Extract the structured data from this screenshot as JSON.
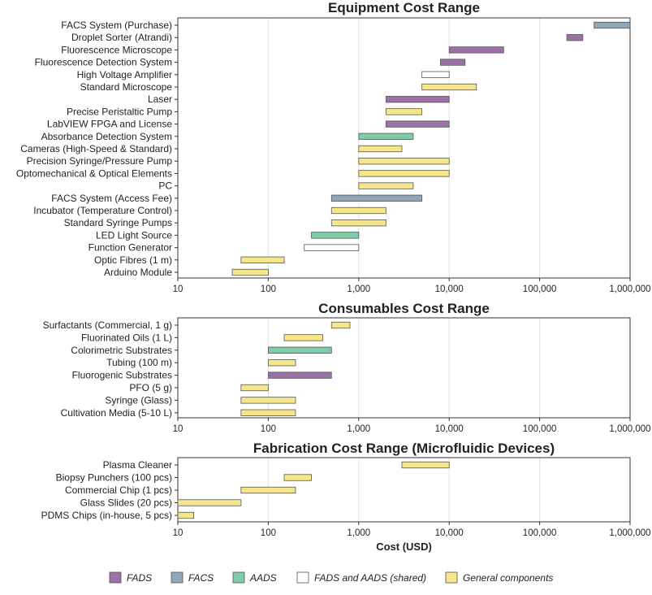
{
  "chart_data": [
    {
      "type": "bar",
      "orientation": "horizontal-range",
      "title": "Equipment Cost Range",
      "xscale": "log",
      "xlim": [
        10,
        1000000
      ],
      "xticks": [
        10,
        100,
        1000,
        10000,
        100000,
        1000000
      ],
      "xtick_labels": [
        "10",
        "100",
        "1,000",
        "10,000",
        "100,000",
        "1,000,000"
      ],
      "xlabel": "",
      "grid": "vertical",
      "items": [
        {
          "label": "FACS System (Purchase)",
          "min": 400000,
          "max": 1000000,
          "category": "FACS"
        },
        {
          "label": "Droplet Sorter (Atrandi)",
          "min": 200000,
          "max": 300000,
          "category": "FADS"
        },
        {
          "label": "Fluorescence Microscope",
          "min": 10000,
          "max": 40000,
          "category": "FADS"
        },
        {
          "label": "Fluorescence Detection System",
          "min": 8000,
          "max": 15000,
          "category": "FADS"
        },
        {
          "label": "High Voltage Amplifier",
          "min": 5000,
          "max": 10000,
          "category": "FADS and AADS (shared)"
        },
        {
          "label": "Standard Microscope",
          "min": 5000,
          "max": 20000,
          "category": "General components"
        },
        {
          "label": "Laser",
          "min": 2000,
          "max": 10000,
          "category": "FADS"
        },
        {
          "label": "Precise Peristaltic Pump",
          "min": 2000,
          "max": 5000,
          "category": "General components"
        },
        {
          "label": "LabVIEW FPGA and License",
          "min": 2000,
          "max": 10000,
          "category": "FADS"
        },
        {
          "label": "Absorbance Detection System",
          "min": 1000,
          "max": 4000,
          "category": "AADS"
        },
        {
          "label": "Cameras (High-Speed & Standard)",
          "min": 1000,
          "max": 3000,
          "category": "General components"
        },
        {
          "label": "Precision Syringe/Pressure Pump",
          "min": 1000,
          "max": 10000,
          "category": "General components"
        },
        {
          "label": "Optomechanical & Optical Elements",
          "min": 1000,
          "max": 10000,
          "category": "General components"
        },
        {
          "label": "PC",
          "min": 1000,
          "max": 4000,
          "category": "General components"
        },
        {
          "label": "FACS System (Access Fee)",
          "min": 500,
          "max": 5000,
          "category": "FACS"
        },
        {
          "label": "Incubator (Temperature Control)",
          "min": 500,
          "max": 2000,
          "category": "General components"
        },
        {
          "label": "Standard Syringe Pumps",
          "min": 500,
          "max": 2000,
          "category": "General components"
        },
        {
          "label": "LED Light Source",
          "min": 300,
          "max": 1000,
          "category": "AADS"
        },
        {
          "label": "Function Generator",
          "min": 250,
          "max": 1000,
          "category": "FADS and AADS (shared)"
        },
        {
          "label": "Optic Fibres (1 m)",
          "min": 50,
          "max": 150,
          "category": "General components"
        },
        {
          "label": "Arduino Module",
          "min": 40,
          "max": 100,
          "category": "General components"
        }
      ]
    },
    {
      "type": "bar",
      "orientation": "horizontal-range",
      "title": "Consumables Cost Range",
      "xscale": "log",
      "xlim": [
        10,
        1000000
      ],
      "xticks": [
        10,
        100,
        1000,
        10000,
        100000,
        1000000
      ],
      "xtick_labels": [
        "10",
        "100",
        "1,000",
        "10,000",
        "100,000",
        "1,000,000"
      ],
      "xlabel": "",
      "grid": "vertical",
      "items": [
        {
          "label": "Surfactants (Commercial, 1 g)",
          "min": 500,
          "max": 800,
          "category": "General components"
        },
        {
          "label": "Fluorinated Oils (1 L)",
          "min": 150,
          "max": 400,
          "category": "General components"
        },
        {
          "label": "Colorimetric Substrates",
          "min": 100,
          "max": 500,
          "category": "AADS"
        },
        {
          "label": "Tubing (100 m)",
          "min": 100,
          "max": 200,
          "category": "General components"
        },
        {
          "label": "Fluorogenic Substrates",
          "min": 100,
          "max": 500,
          "category": "FADS"
        },
        {
          "label": "PFO (5 g)",
          "min": 50,
          "max": 100,
          "category": "General components"
        },
        {
          "label": "Syringe (Glass)",
          "min": 50,
          "max": 200,
          "category": "General components"
        },
        {
          "label": "Cultivation Media (5-10 L)",
          "min": 50,
          "max": 200,
          "category": "General components"
        }
      ]
    },
    {
      "type": "bar",
      "orientation": "horizontal-range",
      "title": "Fabrication Cost Range (Microfluidic Devices)",
      "xscale": "log",
      "xlim": [
        10,
        1000000
      ],
      "xticks": [
        10,
        100,
        1000,
        10000,
        100000,
        1000000
      ],
      "xtick_labels": [
        "10",
        "100",
        "1,000",
        "10,000",
        "100,000",
        "1,000,000"
      ],
      "xlabel": "Cost (USD)",
      "grid": "vertical",
      "items": [
        {
          "label": "Plasma Cleaner",
          "min": 3000,
          "max": 10000,
          "category": "General components"
        },
        {
          "label": "Biopsy Punchers (100 pcs)",
          "min": 150,
          "max": 300,
          "category": "General components"
        },
        {
          "label": "Commercial Chip (1 pcs)",
          "min": 50,
          "max": 200,
          "category": "General components"
        },
        {
          "label": "Glass Slides (20 pcs)",
          "min": 10,
          "max": 50,
          "category": "General components"
        },
        {
          "label": "PDMS Chips (in-house, 5 pcs)",
          "min": 10,
          "max": 15,
          "category": "General components"
        }
      ]
    }
  ],
  "legend": {
    "placement": "bottom",
    "entries": [
      {
        "category": "FADS",
        "label": "FADS",
        "color": "#9b72a8"
      },
      {
        "category": "FACS",
        "label": "FACS",
        "color": "#8fa8b8"
      },
      {
        "category": "AADS",
        "label": "AADS",
        "color": "#7fcca8"
      },
      {
        "category": "FADS and AADS (shared)",
        "label": "FADS and AADS (shared)",
        "color": "#ffffff"
      },
      {
        "category": "General components",
        "label": "General components",
        "color": "#f5e68a"
      }
    ]
  }
}
